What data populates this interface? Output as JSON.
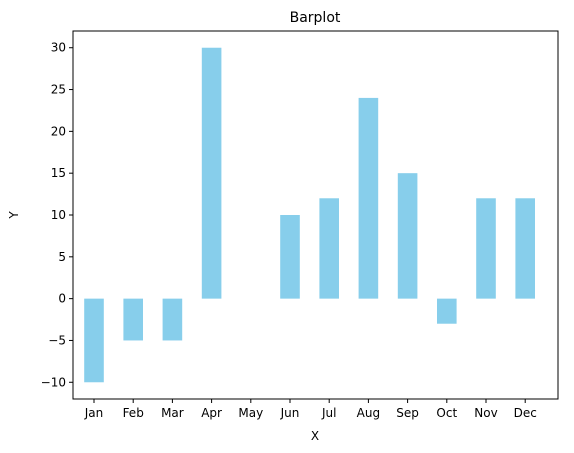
{
  "chart_data": {
    "type": "bar",
    "title": "Barplot",
    "xlabel": "X",
    "ylabel": "Y",
    "categories": [
      "Jan",
      "Feb",
      "Mar",
      "Apr",
      "May",
      "Jun",
      "Jul",
      "Aug",
      "Sep",
      "Oct",
      "Nov",
      "Dec"
    ],
    "values": [
      -10,
      -5,
      -5,
      30,
      0,
      10,
      12,
      24,
      15,
      -3,
      12,
      12
    ],
    "ylim": [
      -12,
      32
    ],
    "yticks": [
      -10,
      -5,
      0,
      5,
      10,
      15,
      20,
      25,
      30
    ],
    "ytick_labels": [
      "−10",
      "−5",
      "0",
      "5",
      "10",
      "15",
      "20",
      "25",
      "30"
    ],
    "bar_color": "#87ceeb",
    "grid": false,
    "legend": "none"
  }
}
